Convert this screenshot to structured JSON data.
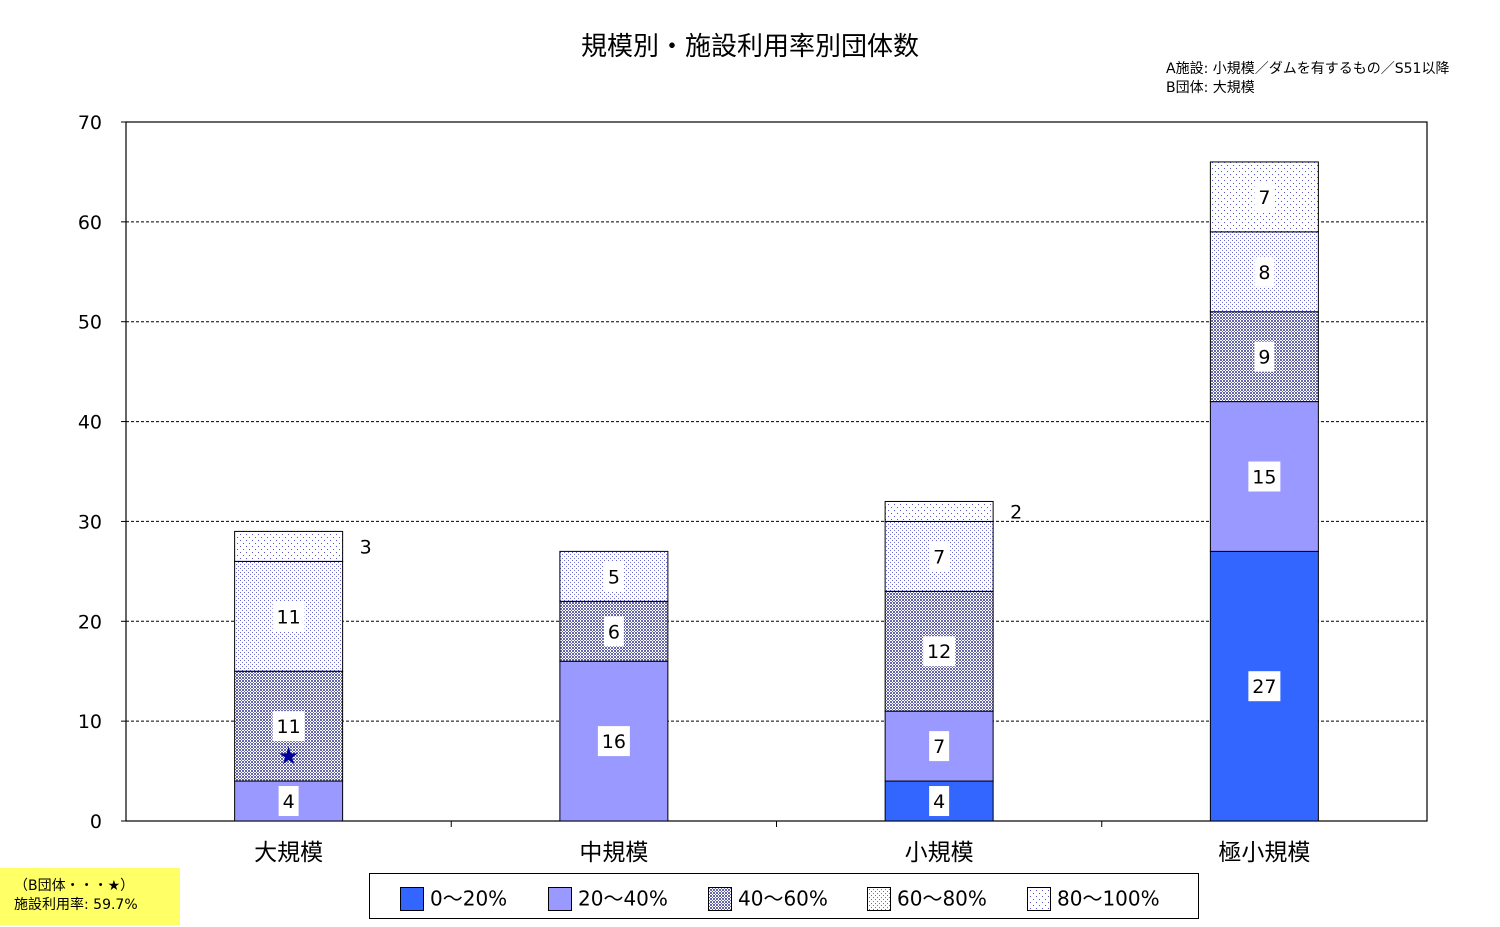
{
  "chart_data": {
    "type": "bar",
    "stacked": true,
    "title": "規模別・施設利用率別団体数",
    "notes": [
      "A施設: 小規模／ダムを有するもの／S51以降",
      "B団体: 大規模"
    ],
    "categories": [
      "大規模",
      "中規模",
      "小規模",
      "極小規模"
    ],
    "ylim": [
      0,
      70
    ],
    "yticks": [
      0,
      10,
      20,
      30,
      40,
      50,
      60,
      70
    ],
    "grid": true,
    "legend_position": "bottom",
    "series": [
      {
        "name": "0〜20%",
        "values": [
          0,
          0,
          4,
          27
        ],
        "color": "#3366ff",
        "pattern": "solid"
      },
      {
        "name": "20〜40%",
        "values": [
          4,
          16,
          7,
          15
        ],
        "color": "#9999ff",
        "pattern": "solid"
      },
      {
        "name": "40〜60%",
        "values": [
          11,
          6,
          12,
          9
        ],
        "color": "#9999cc",
        "pattern": "dense-dots"
      },
      {
        "name": "60〜80%",
        "values": [
          11,
          5,
          7,
          8
        ],
        "color": "#8080e0",
        "pattern": "medium-dots"
      },
      {
        "name": "80〜100%",
        "values": [
          3,
          0,
          2,
          7
        ],
        "color": "#6666cc",
        "pattern": "sparse-dots"
      }
    ],
    "annotation": {
      "marker": "★",
      "category": "大規模",
      "value": 6.5
    }
  },
  "footnote": {
    "line1": "（B団体・・・★）",
    "line2": "施設利用率: 59.7%"
  }
}
